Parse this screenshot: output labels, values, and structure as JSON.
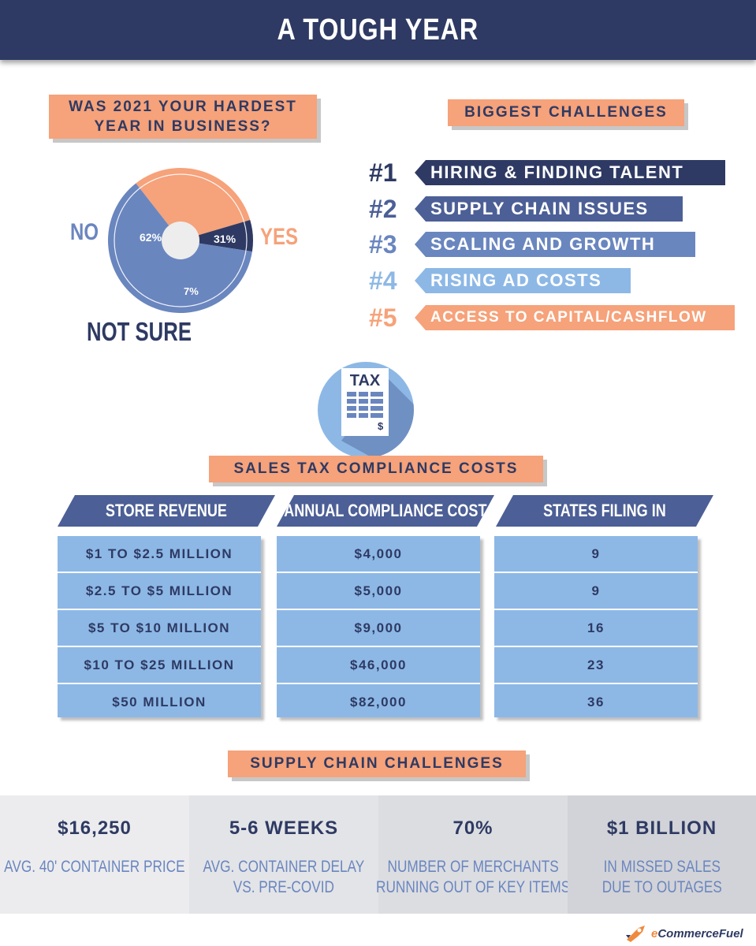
{
  "header": {
    "title": "A TOUGH YEAR"
  },
  "survey": {
    "question": "WAS 2021 YOUR HARDEST YEAR IN BUSINESS?",
    "slices": [
      {
        "label": "NO",
        "value": 62,
        "value_label": "62%",
        "color": "#6a86bf"
      },
      {
        "label": "YES",
        "value": 31,
        "value_label": "31%",
        "color": "#f6a27a"
      },
      {
        "label": "NOT SURE",
        "value": 7,
        "value_label": "7%",
        "color": "#2e3a63"
      }
    ]
  },
  "challenges": {
    "title": "BIGGEST CHALLENGES",
    "items": [
      {
        "rank": "#1",
        "label": "HIRING & FINDING TALENT",
        "color": "#2e3a63"
      },
      {
        "rank": "#2",
        "label": "SUPPLY CHAIN ISSUES",
        "color": "#4c5f96"
      },
      {
        "rank": "#3",
        "label": "SCALING AND GROWTH",
        "color": "#6a86bf"
      },
      {
        "rank": "#4",
        "label": "RISING AD COSTS",
        "color": "#8db8e6"
      },
      {
        "rank": "#5",
        "label": "ACCESS TO CAPITAL/CASHFLOW",
        "color": "#f6a27a"
      }
    ]
  },
  "tax": {
    "icon": "tax-document-icon",
    "icon_text": "TAX",
    "icon_symbol": "$",
    "title": "SALES TAX COMPLIANCE COSTS",
    "headers": [
      "STORE REVENUE",
      "ANNUAL COMPLIANCE COST",
      "STATES FILING IN"
    ],
    "rows": [
      [
        "$1 TO $2.5 MILLION",
        "$4,000",
        "9"
      ],
      [
        "$2.5 TO $5 MILLION",
        "$5,000",
        "9"
      ],
      [
        "$5 TO $10 MILLION",
        "$9,000",
        "16"
      ],
      [
        "$10 TO $25 MILLION",
        "$46,000",
        "23"
      ],
      [
        "$50  MILLION",
        "$82,000",
        "36"
      ]
    ]
  },
  "supply_chain": {
    "title": "SUPPLY CHAIN CHALLENGES",
    "stats": [
      {
        "value": "$16,250",
        "desc_line1": "AVG. 40' CONTAINER PRICE",
        "desc_line2": "",
        "bg": "#ececee"
      },
      {
        "value": "5-6 WEEKS",
        "desc_line1": "AVG. CONTAINER DELAY",
        "desc_line2": "VS. PRE-COVID",
        "bg": "#e3e4e7"
      },
      {
        "value": "70%",
        "desc_line1": "NUMBER OF MERCHANTS",
        "desc_line2": "RUNNING OUT OF KEY ITEMS",
        "bg": "#dcdde1"
      },
      {
        "value": "$1 BILLION",
        "desc_line1": "IN  MISSED SALES",
        "desc_line2": "DUE TO OUTAGES",
        "bg": "#d2d3d8"
      }
    ]
  },
  "footer": {
    "logo_prefix": "e",
    "logo_rest": "CommerceFuel",
    "logo_icon": "rocket-logo-icon"
  }
}
